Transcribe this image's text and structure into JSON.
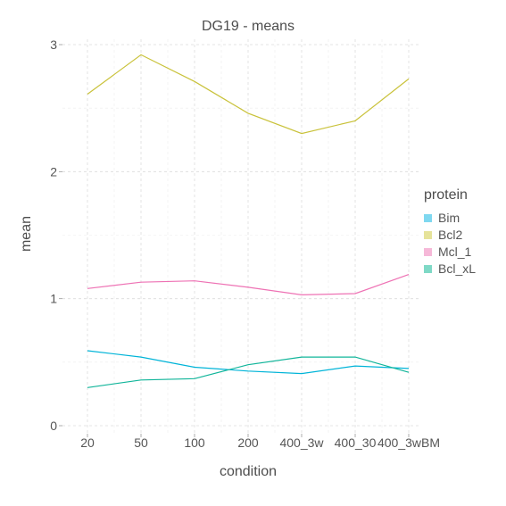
{
  "chart_data": {
    "type": "line",
    "title": "DG19 - means",
    "xlabel": "condition",
    "ylabel": "mean",
    "categories": [
      "20",
      "50",
      "100",
      "200",
      "400_3w",
      "400_30",
      "400_3wBM"
    ],
    "ylim": [
      0,
      3
    ],
    "yticks": [
      "0",
      "1",
      "2",
      "3"
    ],
    "grid": true,
    "legend": {
      "title": "protein",
      "position": "right"
    },
    "series": [
      {
        "name": "Bim",
        "color": "#00b4d8",
        "legend_color": "#7fd8f0",
        "values": [
          0.59,
          0.54,
          0.46,
          0.43,
          0.41,
          0.47,
          0.45
        ]
      },
      {
        "name": "Bcl2",
        "color": "#c9c23a",
        "legend_color": "#e6e39a",
        "values": [
          2.61,
          2.92,
          2.71,
          2.46,
          2.3,
          2.4,
          2.73
        ]
      },
      {
        "name": "Mcl_1",
        "color": "#ee72b4",
        "legend_color": "#f6b8d8",
        "values": [
          1.08,
          1.13,
          1.14,
          1.09,
          1.03,
          1.04,
          1.19
        ]
      },
      {
        "name": "Bcl_xL",
        "color": "#11b59a",
        "legend_color": "#7fd9c6",
        "values": [
          0.3,
          0.36,
          0.37,
          0.48,
          0.54,
          0.54,
          0.42
        ]
      }
    ]
  }
}
